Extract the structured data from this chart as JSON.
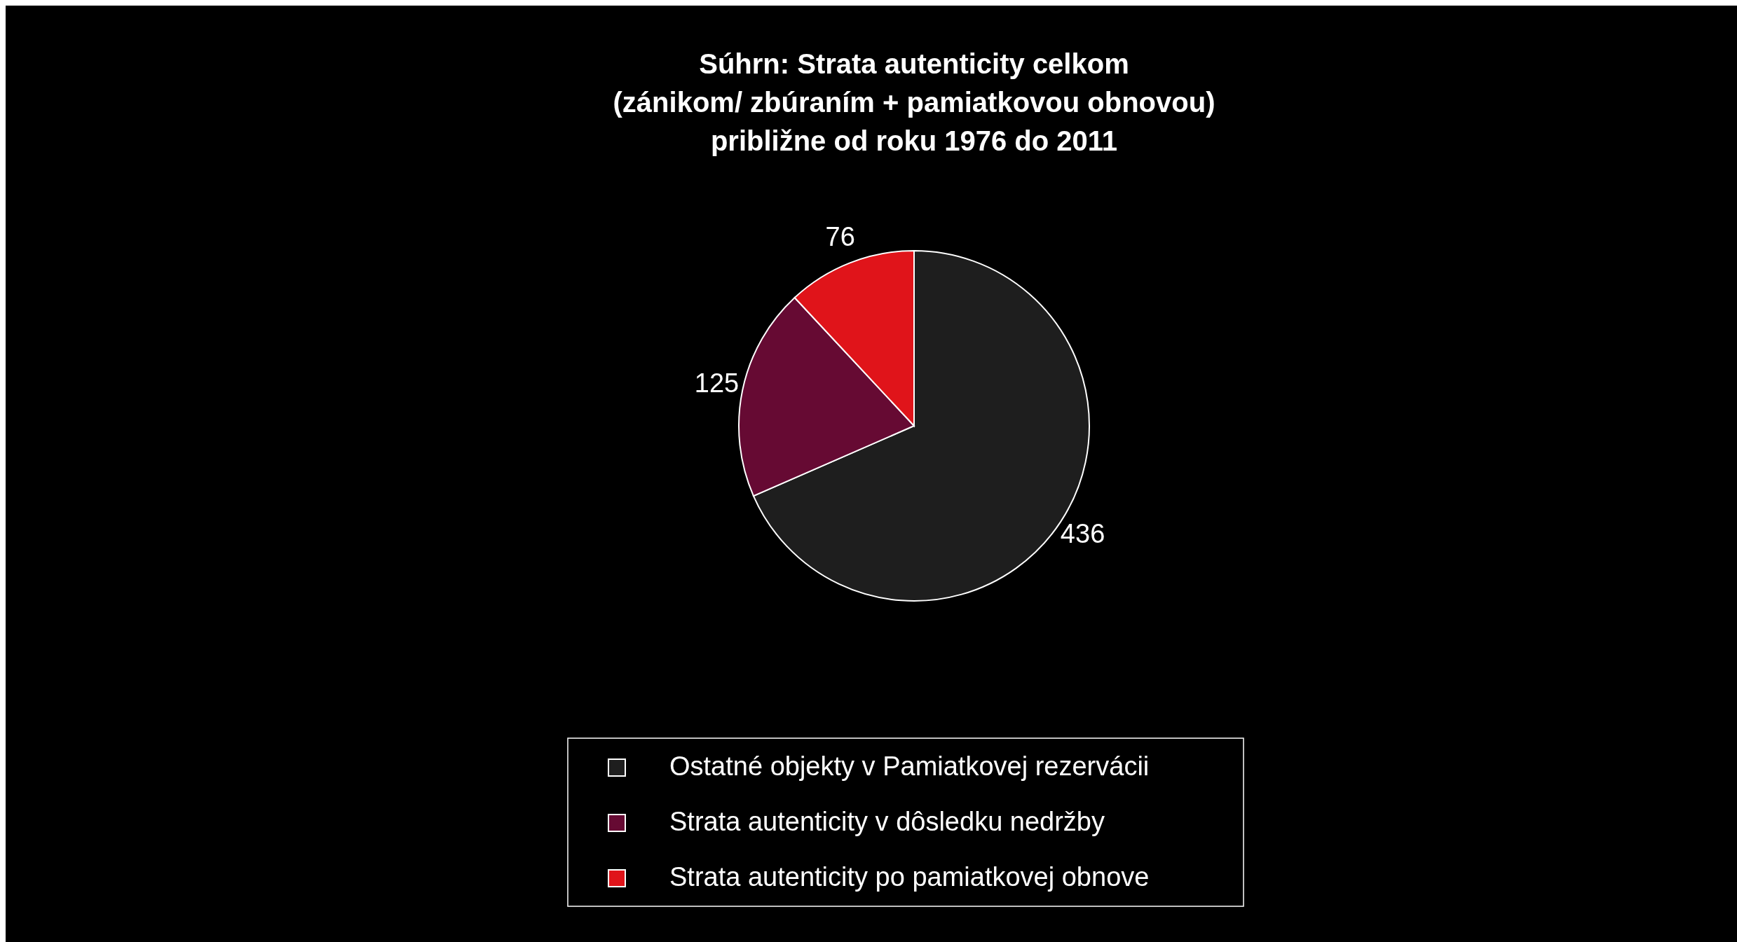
{
  "chart_data": {
    "type": "pie",
    "title": "Súhrn: Strata autenticity celkom\n(zánikom/ zbúraním + pamiatkovou obnovou)\npribližne od roku 1976 do 2011",
    "categories": [
      "Ostatné objekty v Pamiatkovej rezervácii",
      "Strata autenticity v dôsledku nedržby",
      "Strata autenticity po pamiatkovej obnove"
    ],
    "values": [
      436,
      125,
      76
    ],
    "colors": [
      "#1e1e1e",
      "#660a33",
      "#e0141a"
    ],
    "data_labels": true,
    "legend": "bottom"
  }
}
